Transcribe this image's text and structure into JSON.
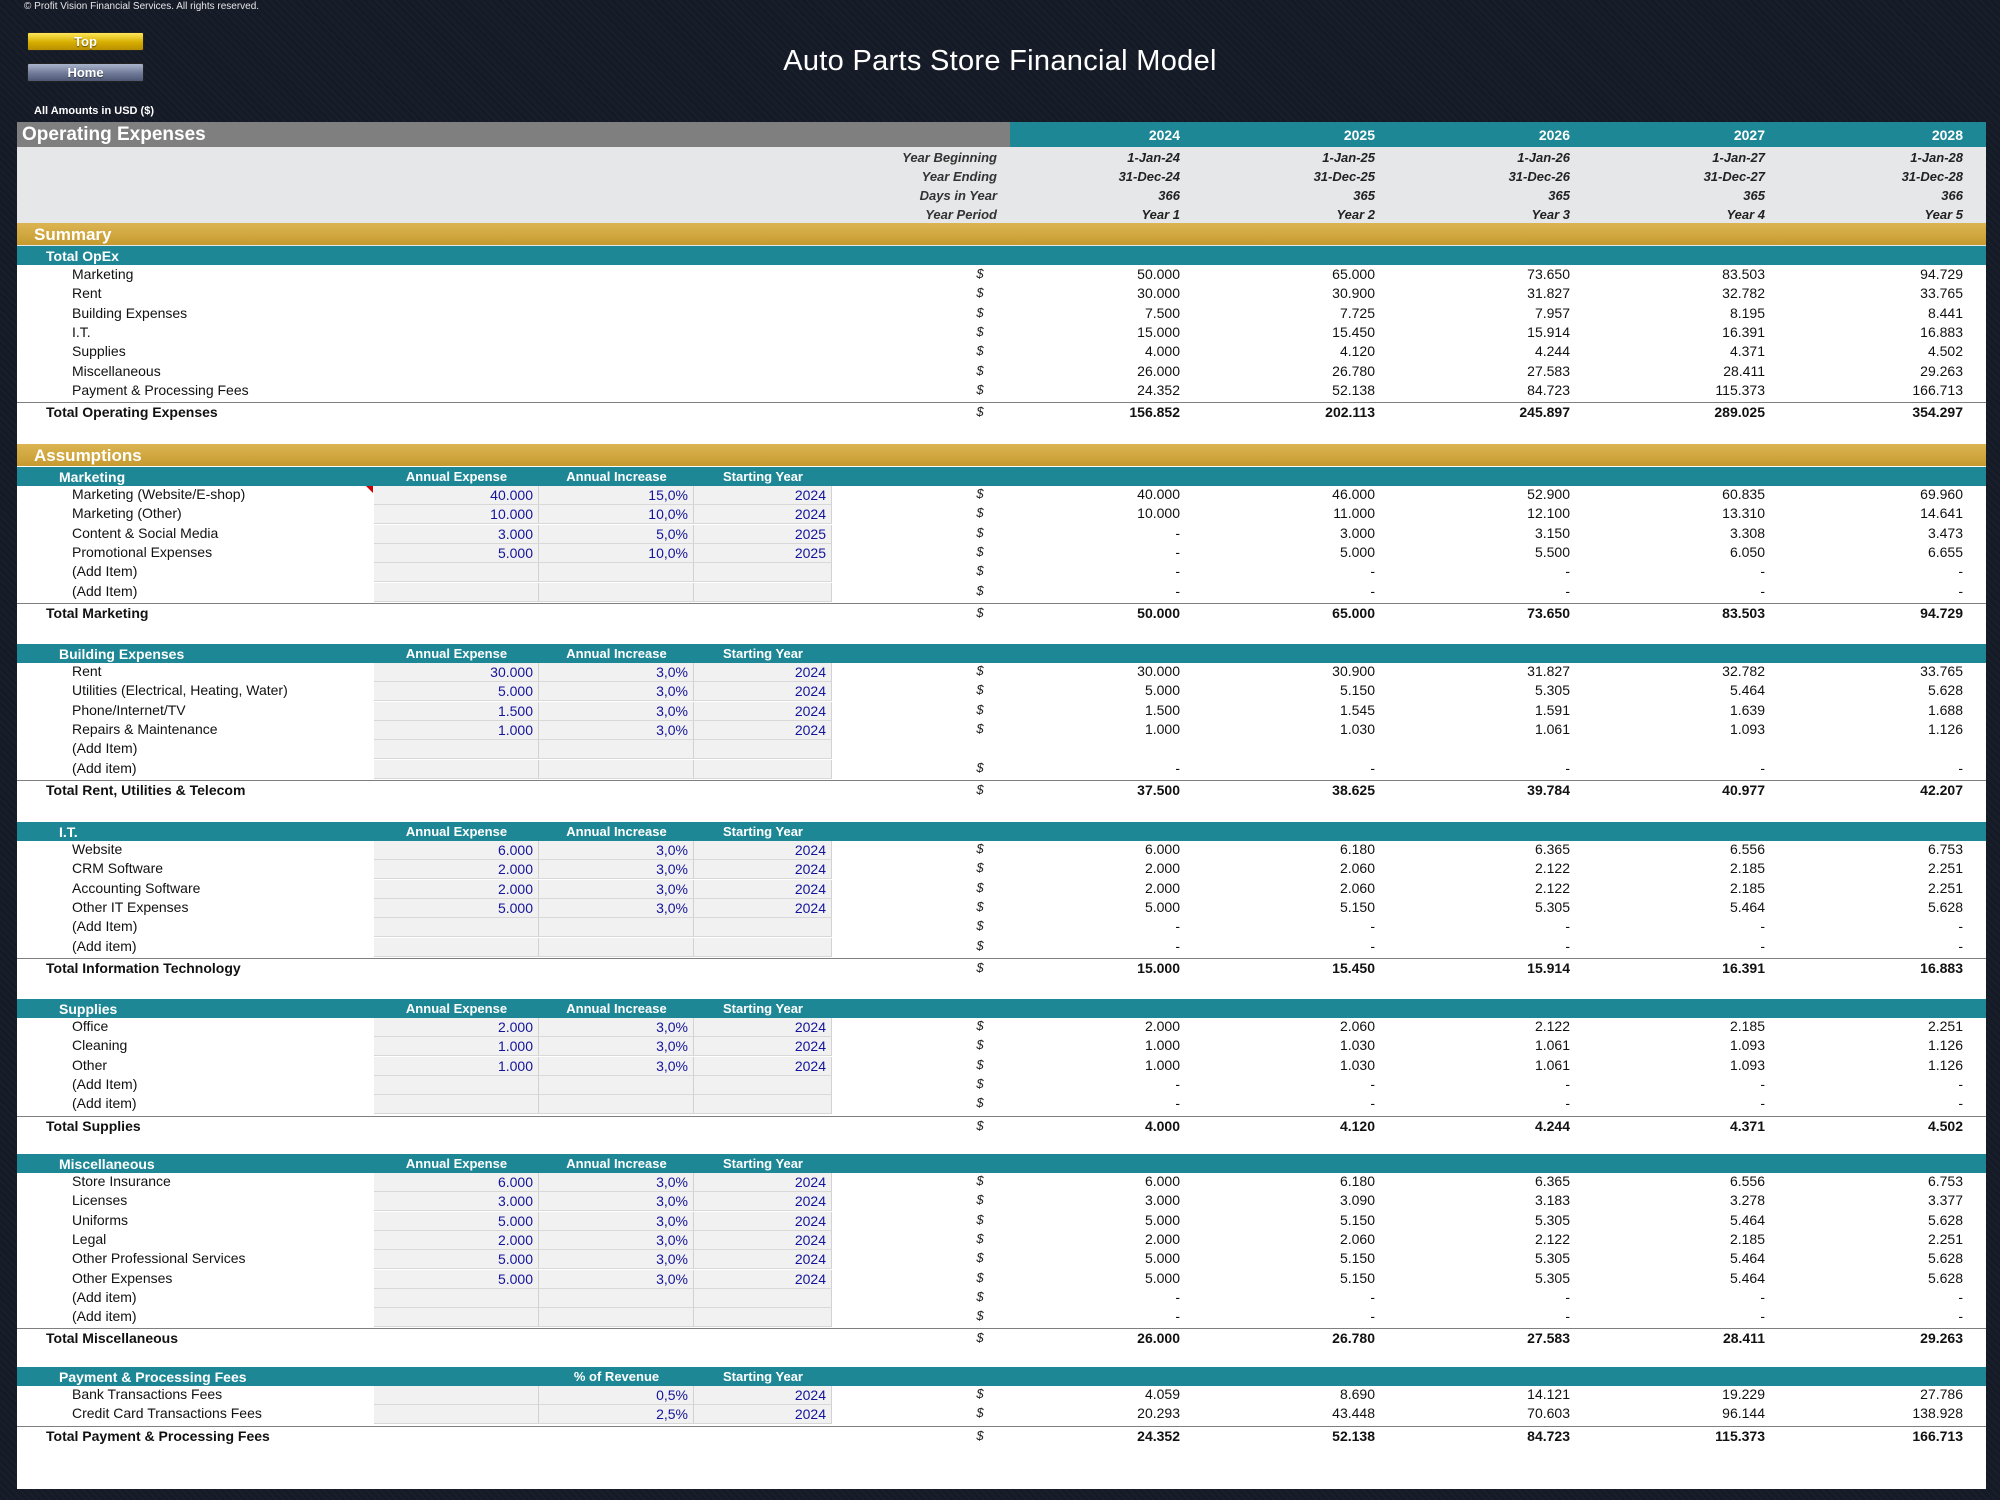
{
  "copyright": "© Profit Vision Financial Services. All rights reserved.",
  "nav": {
    "top_label": "Top",
    "home_label": "Home"
  },
  "app_title": "Auto Parts Store Financial Model",
  "amounts_label": "All Amounts in  USD ($)",
  "header": {
    "title": "Operating Expenses",
    "years": [
      "2024",
      "2025",
      "2026",
      "2027",
      "2028"
    ],
    "date_labels": [
      "Year Beginning",
      "Year Ending",
      "Days in Year",
      "Year Period"
    ],
    "year_beginning": [
      "1-Jan-24",
      "1-Jan-25",
      "1-Jan-26",
      "1-Jan-27",
      "1-Jan-28"
    ],
    "year_ending": [
      "31-Dec-24",
      "31-Dec-25",
      "31-Dec-26",
      "31-Dec-27",
      "31-Dec-28"
    ],
    "days_in_year": [
      "366",
      "365",
      "365",
      "365",
      "366"
    ],
    "year_period": [
      "Year 1",
      "Year 2",
      "Year 3",
      "Year 4",
      "Year 5"
    ]
  },
  "summary": {
    "title": "Summary",
    "subheader": "Total OpEx",
    "currency": "$",
    "rows": [
      {
        "label": "Marketing",
        "values": [
          "50.000",
          "65.000",
          "73.650",
          "83.503",
          "94.729"
        ]
      },
      {
        "label": "Rent",
        "values": [
          "30.000",
          "30.900",
          "31.827",
          "32.782",
          "33.765"
        ]
      },
      {
        "label": "Building Expenses",
        "values": [
          "7.500",
          "7.725",
          "7.957",
          "8.195",
          "8.441"
        ]
      },
      {
        "label": "I.T.",
        "values": [
          "15.000",
          "15.450",
          "15.914",
          "16.391",
          "16.883"
        ]
      },
      {
        "label": "Supplies",
        "values": [
          "4.000",
          "4.120",
          "4.244",
          "4.371",
          "4.502"
        ]
      },
      {
        "label": "Miscellaneous",
        "values": [
          "26.000",
          "26.780",
          "27.583",
          "28.411",
          "29.263"
        ]
      },
      {
        "label": "Payment & Processing Fees",
        "values": [
          "24.352",
          "52.138",
          "84.723",
          "115.373",
          "166.713"
        ]
      }
    ],
    "total": {
      "label": "Total Operating Expenses",
      "values": [
        "156.852",
        "202.113",
        "245.897",
        "289.025",
        "354.297"
      ]
    }
  },
  "assumptions": {
    "title": "Assumptions",
    "currency": "$",
    "sections": [
      {
        "name": "Marketing",
        "col_headers": [
          "Annual Expense",
          "Annual Increase",
          "Starting Year"
        ],
        "rows": [
          {
            "label": "Marketing (Website/E-shop)",
            "inputs": [
              "40.000",
              "15,0%",
              "2024"
            ],
            "values": [
              "40.000",
              "46.000",
              "52.900",
              "60.835",
              "69.960"
            ]
          },
          {
            "label": "Marketing (Other)",
            "inputs": [
              "10.000",
              "10,0%",
              "2024"
            ],
            "values": [
              "10.000",
              "11.000",
              "12.100",
              "13.310",
              "14.641"
            ]
          },
          {
            "label": "Content & Social Media",
            "inputs": [
              "3.000",
              "5,0%",
              "2025"
            ],
            "values": [
              "-",
              "3.000",
              "3.150",
              "3.308",
              "3.473"
            ]
          },
          {
            "label": "Promotional Expenses",
            "inputs": [
              "5.000",
              "10,0%",
              "2025"
            ],
            "values": [
              "-",
              "5.000",
              "5.500",
              "6.050",
              "6.655"
            ]
          },
          {
            "label": "(Add Item)",
            "inputs": [
              "",
              "",
              ""
            ],
            "values": [
              "-",
              "-",
              "-",
              "-",
              "-"
            ]
          },
          {
            "label": "(Add Item)",
            "inputs": [
              "",
              "",
              ""
            ],
            "values": [
              "-",
              "-",
              "-",
              "-",
              "-"
            ]
          }
        ],
        "total": {
          "label": "Total Marketing",
          "values": [
            "50.000",
            "65.000",
            "73.650",
            "83.503",
            "94.729"
          ]
        }
      },
      {
        "name": "Building Expenses",
        "col_headers": [
          "Annual Expense",
          "Annual Increase",
          "Starting Year"
        ],
        "rows": [
          {
            "label": "Rent",
            "inputs": [
              "30.000",
              "3,0%",
              "2024"
            ],
            "values": [
              "30.000",
              "30.900",
              "31.827",
              "32.782",
              "33.765"
            ]
          },
          {
            "label": "Utilities (Electrical, Heating, Water)",
            "inputs": [
              "5.000",
              "3,0%",
              "2024"
            ],
            "values": [
              "5.000",
              "5.150",
              "5.305",
              "5.464",
              "5.628"
            ]
          },
          {
            "label": "Phone/Internet/TV",
            "inputs": [
              "1.500",
              "3,0%",
              "2024"
            ],
            "values": [
              "1.500",
              "1.545",
              "1.591",
              "1.639",
              "1.688"
            ]
          },
          {
            "label": "Repairs & Maintenance",
            "inputs": [
              "1.000",
              "3,0%",
              "2024"
            ],
            "values": [
              "1.000",
              "1.030",
              "1.061",
              "1.093",
              "1.126"
            ]
          },
          {
            "label": "(Add Item)",
            "inputs": [
              "",
              "",
              ""
            ],
            "values": [
              "",
              "",
              "",
              "",
              ""
            ],
            "no_currency": true
          },
          {
            "label": "(Add item)",
            "inputs": [
              "",
              "",
              ""
            ],
            "values": [
              "-",
              "-",
              "-",
              "-",
              "-"
            ]
          }
        ],
        "total": {
          "label": "Total Rent, Utilities & Telecom",
          "values": [
            "37.500",
            "38.625",
            "39.784",
            "40.977",
            "42.207"
          ]
        }
      },
      {
        "name": "I.T.",
        "col_headers": [
          "Annual Expense",
          "Annual Increase",
          "Starting Year"
        ],
        "rows": [
          {
            "label": "Website",
            "inputs": [
              "6.000",
              "3,0%",
              "2024"
            ],
            "values": [
              "6.000",
              "6.180",
              "6.365",
              "6.556",
              "6.753"
            ]
          },
          {
            "label": "CRM Software",
            "inputs": [
              "2.000",
              "3,0%",
              "2024"
            ],
            "values": [
              "2.000",
              "2.060",
              "2.122",
              "2.185",
              "2.251"
            ]
          },
          {
            "label": "Accounting Software",
            "inputs": [
              "2.000",
              "3,0%",
              "2024"
            ],
            "values": [
              "2.000",
              "2.060",
              "2.122",
              "2.185",
              "2.251"
            ]
          },
          {
            "label": "Other IT Expenses",
            "inputs": [
              "5.000",
              "3,0%",
              "2024"
            ],
            "values": [
              "5.000",
              "5.150",
              "5.305",
              "5.464",
              "5.628"
            ]
          },
          {
            "label": "(Add Item)",
            "inputs": [
              "",
              "",
              ""
            ],
            "values": [
              "-",
              "-",
              "-",
              "-",
              "-"
            ]
          },
          {
            "label": "(Add item)",
            "inputs": [
              "",
              "",
              ""
            ],
            "values": [
              "-",
              "-",
              "-",
              "-",
              "-"
            ]
          }
        ],
        "total": {
          "label": "Total Information Technology",
          "values": [
            "15.000",
            "15.450",
            "15.914",
            "16.391",
            "16.883"
          ]
        }
      },
      {
        "name": "Supplies",
        "col_headers": [
          "Annual Expense",
          "Annual Increase",
          "Starting Year"
        ],
        "rows": [
          {
            "label": "Office",
            "inputs": [
              "2.000",
              "3,0%",
              "2024"
            ],
            "values": [
              "2.000",
              "2.060",
              "2.122",
              "2.185",
              "2.251"
            ]
          },
          {
            "label": "Cleaning",
            "inputs": [
              "1.000",
              "3,0%",
              "2024"
            ],
            "values": [
              "1.000",
              "1.030",
              "1.061",
              "1.093",
              "1.126"
            ]
          },
          {
            "label": "Other",
            "inputs": [
              "1.000",
              "3,0%",
              "2024"
            ],
            "values": [
              "1.000",
              "1.030",
              "1.061",
              "1.093",
              "1.126"
            ]
          },
          {
            "label": "(Add Item)",
            "inputs": [
              "",
              "",
              ""
            ],
            "values": [
              "-",
              "-",
              "-",
              "-",
              "-"
            ]
          },
          {
            "label": "(Add item)",
            "inputs": [
              "",
              "",
              ""
            ],
            "values": [
              "-",
              "-",
              "-",
              "-",
              "-"
            ]
          }
        ],
        "total": {
          "label": "Total Supplies",
          "values": [
            "4.000",
            "4.120",
            "4.244",
            "4.371",
            "4.502"
          ]
        }
      },
      {
        "name": "Miscellaneous",
        "col_headers": [
          "Annual Expense",
          "Annual Increase",
          "Starting Year"
        ],
        "rows": [
          {
            "label": "Store Insurance",
            "inputs": [
              "6.000",
              "3,0%",
              "2024"
            ],
            "values": [
              "6.000",
              "6.180",
              "6.365",
              "6.556",
              "6.753"
            ]
          },
          {
            "label": "Licenses",
            "inputs": [
              "3.000",
              "3,0%",
              "2024"
            ],
            "values": [
              "3.000",
              "3.090",
              "3.183",
              "3.278",
              "3.377"
            ]
          },
          {
            "label": "Uniforms",
            "inputs": [
              "5.000",
              "3,0%",
              "2024"
            ],
            "values": [
              "5.000",
              "5.150",
              "5.305",
              "5.464",
              "5.628"
            ]
          },
          {
            "label": "Legal",
            "inputs": [
              "2.000",
              "3,0%",
              "2024"
            ],
            "values": [
              "2.000",
              "2.060",
              "2.122",
              "2.185",
              "2.251"
            ]
          },
          {
            "label": "Other Professional Services",
            "inputs": [
              "5.000",
              "3,0%",
              "2024"
            ],
            "values": [
              "5.000",
              "5.150",
              "5.305",
              "5.464",
              "5.628"
            ]
          },
          {
            "label": "Other Expenses",
            "inputs": [
              "5.000",
              "3,0%",
              "2024"
            ],
            "values": [
              "5.000",
              "5.150",
              "5.305",
              "5.464",
              "5.628"
            ]
          },
          {
            "label": "(Add item)",
            "inputs": [
              "",
              "",
              ""
            ],
            "values": [
              "-",
              "-",
              "-",
              "-",
              "-"
            ]
          },
          {
            "label": "(Add item)",
            "inputs": [
              "",
              "",
              ""
            ],
            "values": [
              "-",
              "-",
              "-",
              "-",
              "-"
            ]
          }
        ],
        "total": {
          "label": "Total Miscellaneous",
          "values": [
            "26.000",
            "26.780",
            "27.583",
            "28.411",
            "29.263"
          ]
        }
      },
      {
        "name": "Payment & Processing Fees",
        "col_headers": [
          "",
          "% of Revenue",
          "Starting Year"
        ],
        "rows": [
          {
            "label": "Bank Transactions Fees",
            "inputs": [
              "",
              "0,5%",
              "2024"
            ],
            "values": [
              "4.059",
              "8.690",
              "14.121",
              "19.229",
              "27.786"
            ]
          },
          {
            "label": "Credit Card Transactions Fees",
            "inputs": [
              "",
              "2,5%",
              "2024"
            ],
            "values": [
              "20.293",
              "43.448",
              "70.603",
              "96.144",
              "138.928"
            ]
          }
        ],
        "total": {
          "label": "Total Payment & Processing Fees",
          "values": [
            "24.352",
            "52.138",
            "84.723",
            "115.373",
            "166.713"
          ]
        }
      }
    ]
  }
}
